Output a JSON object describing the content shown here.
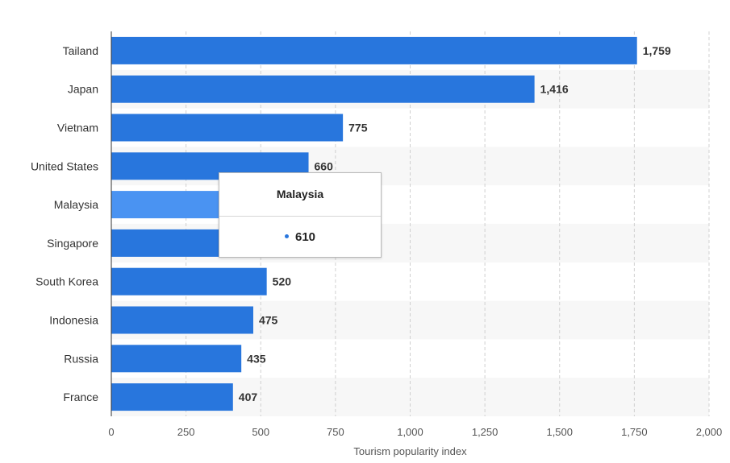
{
  "chart_data": {
    "type": "bar",
    "orientation": "horizontal",
    "categories": [
      "Tailand",
      "Japan",
      "Vietnam",
      "United States",
      "Malaysia",
      "Singapore",
      "South Korea",
      "Indonesia",
      "Russia",
      "France"
    ],
    "values": [
      1759,
      1416,
      775,
      660,
      610,
      590,
      520,
      475,
      435,
      407
    ],
    "value_labels": [
      "1,759",
      "1,416",
      "775",
      "660",
      "610",
      "",
      "520",
      "475",
      "435",
      "407"
    ],
    "xlabel": "Tourism popularity index",
    "xlim": [
      0,
      2000
    ],
    "xticks": [
      0,
      250,
      500,
      750,
      1000,
      1250,
      1500,
      1750,
      2000
    ],
    "xtick_labels": [
      "0",
      "250",
      "500",
      "750",
      "1,000",
      "1,250",
      "1,500",
      "1,750",
      "2,000"
    ],
    "grid": "vertical dashed",
    "highlighted": "Malaysia"
  },
  "colors": {
    "bar": "#2876dd",
    "bar_highlight": "#4a93f2",
    "band_alt": "#f7f7f7",
    "grid": "#d0d0d0"
  },
  "tooltip": {
    "title": "Malaysia",
    "value": "610"
  }
}
